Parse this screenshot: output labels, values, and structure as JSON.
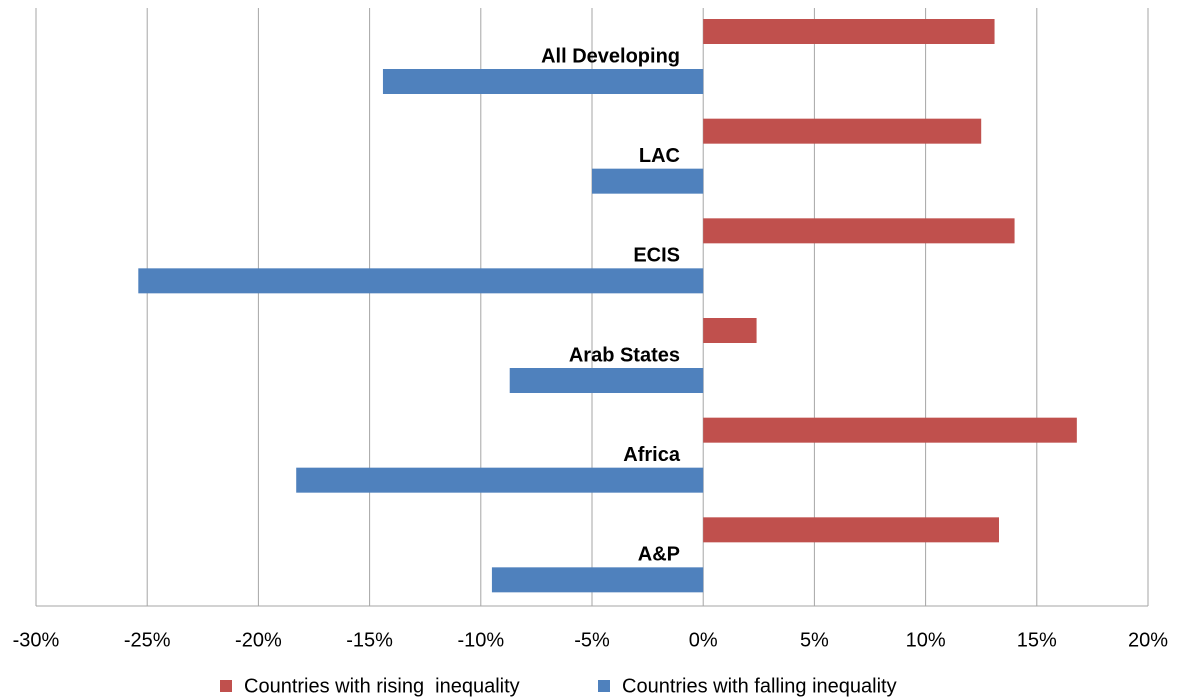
{
  "chart_data": {
    "type": "bar",
    "orientation": "horizontal",
    "categories": [
      "All Developing",
      "LAC",
      "ECIS",
      "Arab States",
      "Africa",
      "A&P"
    ],
    "series": [
      {
        "name": "Countries with rising  inequality",
        "color": "#c0504d",
        "values": [
          13.1,
          12.5,
          14.0,
          2.4,
          16.8,
          13.3
        ]
      },
      {
        "name": "Countries with falling inequality",
        "color": "#4f81bd",
        "values": [
          -14.4,
          -5.0,
          -25.4,
          -8.7,
          -18.3,
          -9.5
        ]
      }
    ],
    "xlim": [
      -30,
      20
    ],
    "xticks": [
      {
        "value": -30,
        "label": "-30%"
      },
      {
        "value": -25,
        "label": "-25%"
      },
      {
        "value": -20,
        "label": "-20%"
      },
      {
        "value": -15,
        "label": "-15%"
      },
      {
        "value": -10,
        "label": "-10%"
      },
      {
        "value": -5,
        "label": "-5%"
      },
      {
        "value": 0,
        "label": "0%"
      },
      {
        "value": 5,
        "label": "5%"
      },
      {
        "value": 10,
        "label": "10%"
      },
      {
        "value": 15,
        "label": "15%"
      },
      {
        "value": 20,
        "label": "20%"
      }
    ],
    "grid": true,
    "legend": "bottom"
  }
}
